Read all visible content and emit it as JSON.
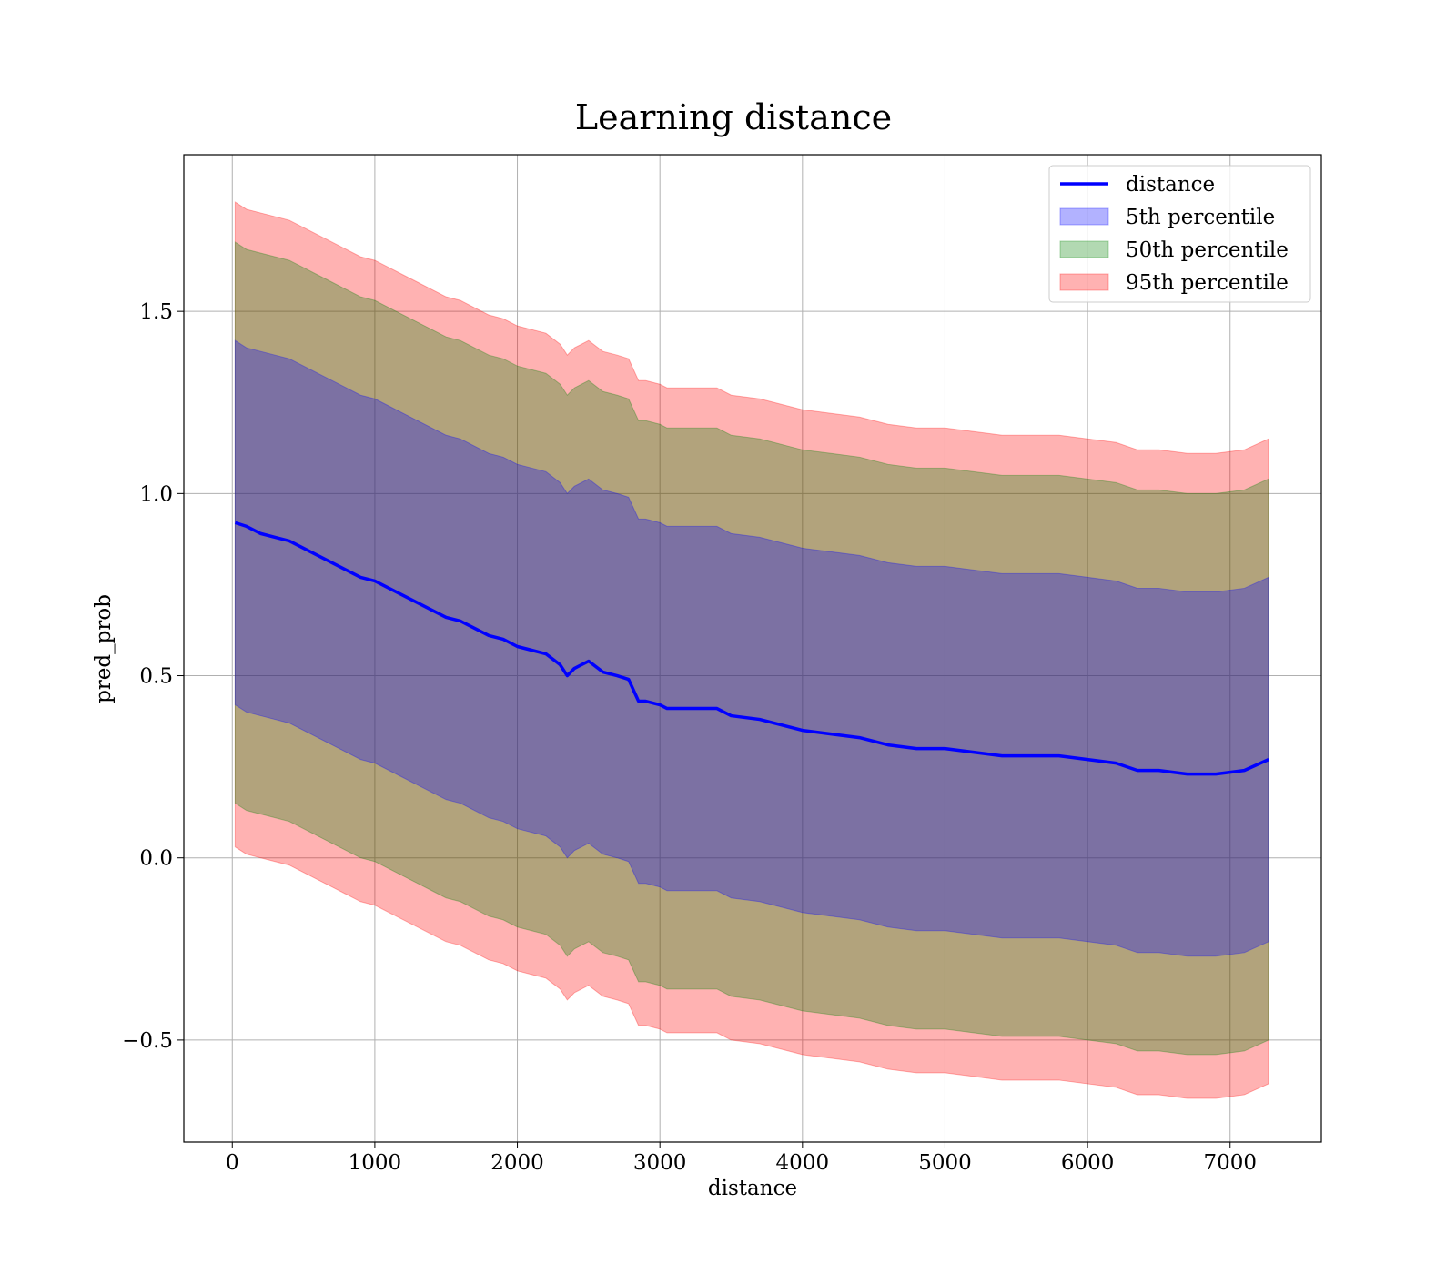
{
  "chart_data": {
    "type": "area",
    "title": "Learning distance",
    "xlabel": "distance",
    "ylabel": "pred_prob",
    "xlim": [
      -340,
      7640
    ],
    "ylim": [
      -0.78,
      1.93
    ],
    "grid": true,
    "legend_location": "top-right",
    "xticks": [
      0,
      1000,
      2000,
      3000,
      4000,
      5000,
      6000,
      7000
    ],
    "xtick_labels": [
      "0",
      "1000",
      "2000",
      "3000",
      "4000",
      "5000",
      "6000",
      "7000"
    ],
    "yticks": [
      -0.5,
      0.0,
      0.5,
      1.0,
      1.5
    ],
    "ytick_labels": [
      "−0.5",
      "0.0",
      "0.5",
      "1.0",
      "1.5"
    ],
    "x": [
      20,
      100,
      200,
      300,
      400,
      500,
      600,
      700,
      800,
      900,
      1000,
      1100,
      1200,
      1300,
      1400,
      1500,
      1600,
      1700,
      1800,
      1900,
      2000,
      2100,
      2200,
      2300,
      2350,
      2400,
      2500,
      2600,
      2700,
      2780,
      2850,
      2900,
      3000,
      3050,
      3200,
      3400,
      3500,
      3700,
      3800,
      3900,
      4000,
      4200,
      4400,
      4500,
      4600,
      4800,
      5000,
      5200,
      5400,
      5600,
      5800,
      6000,
      6200,
      6350,
      6500,
      6700,
      6900,
      7100,
      7270
    ],
    "series": [
      {
        "name": "distance",
        "kind": "line",
        "color": "#0000ff",
        "values": [
          0.92,
          0.91,
          0.89,
          0.88,
          0.87,
          0.85,
          0.83,
          0.81,
          0.79,
          0.77,
          0.76,
          0.74,
          0.72,
          0.7,
          0.68,
          0.66,
          0.65,
          0.63,
          0.61,
          0.6,
          0.58,
          0.57,
          0.56,
          0.53,
          0.5,
          0.52,
          0.54,
          0.51,
          0.5,
          0.49,
          0.43,
          0.43,
          0.42,
          0.41,
          0.41,
          0.41,
          0.39,
          0.38,
          0.37,
          0.36,
          0.35,
          0.34,
          0.33,
          0.32,
          0.31,
          0.3,
          0.3,
          0.29,
          0.28,
          0.28,
          0.28,
          0.27,
          0.26,
          0.24,
          0.24,
          0.23,
          0.23,
          0.24,
          0.27
        ]
      },
      {
        "name": "5th percentile",
        "kind": "band",
        "color": "#0000ff",
        "upper": [
          1.42,
          1.4,
          1.39,
          1.38,
          1.37,
          1.35,
          1.33,
          1.31,
          1.29,
          1.27,
          1.26,
          1.24,
          1.22,
          1.2,
          1.18,
          1.16,
          1.15,
          1.13,
          1.11,
          1.1,
          1.08,
          1.07,
          1.06,
          1.03,
          1.0,
          1.02,
          1.04,
          1.01,
          1.0,
          0.99,
          0.93,
          0.93,
          0.92,
          0.91,
          0.91,
          0.91,
          0.89,
          0.88,
          0.87,
          0.86,
          0.85,
          0.84,
          0.83,
          0.82,
          0.81,
          0.8,
          0.8,
          0.79,
          0.78,
          0.78,
          0.78,
          0.77,
          0.76,
          0.74,
          0.74,
          0.73,
          0.73,
          0.74,
          0.77
        ],
        "lower": [
          0.42,
          0.4,
          0.39,
          0.38,
          0.37,
          0.35,
          0.33,
          0.31,
          0.29,
          0.27,
          0.26,
          0.24,
          0.22,
          0.2,
          0.18,
          0.16,
          0.15,
          0.13,
          0.11,
          0.1,
          0.08,
          0.07,
          0.06,
          0.03,
          0.0,
          0.02,
          0.04,
          0.01,
          0.0,
          -0.01,
          -0.07,
          -0.07,
          -0.08,
          -0.09,
          -0.09,
          -0.09,
          -0.11,
          -0.12,
          -0.13,
          -0.14,
          -0.15,
          -0.16,
          -0.17,
          -0.18,
          -0.19,
          -0.2,
          -0.2,
          -0.21,
          -0.22,
          -0.22,
          -0.22,
          -0.23,
          -0.24,
          -0.26,
          -0.26,
          -0.27,
          -0.27,
          -0.26,
          -0.23
        ]
      },
      {
        "name": "50th percentile",
        "kind": "band",
        "color": "#008000",
        "upper": [
          1.69,
          1.67,
          1.66,
          1.65,
          1.64,
          1.62,
          1.6,
          1.58,
          1.56,
          1.54,
          1.53,
          1.51,
          1.49,
          1.47,
          1.45,
          1.43,
          1.42,
          1.4,
          1.38,
          1.37,
          1.35,
          1.34,
          1.33,
          1.3,
          1.27,
          1.29,
          1.31,
          1.28,
          1.27,
          1.26,
          1.2,
          1.2,
          1.19,
          1.18,
          1.18,
          1.18,
          1.16,
          1.15,
          1.14,
          1.13,
          1.12,
          1.11,
          1.1,
          1.09,
          1.08,
          1.07,
          1.07,
          1.06,
          1.05,
          1.05,
          1.05,
          1.04,
          1.03,
          1.01,
          1.01,
          1.0,
          1.0,
          1.01,
          1.04
        ],
        "lower": [
          0.15,
          0.13,
          0.12,
          0.11,
          0.1,
          0.08,
          0.06,
          0.04,
          0.02,
          0.0,
          -0.01,
          -0.03,
          -0.05,
          -0.07,
          -0.09,
          -0.11,
          -0.12,
          -0.14,
          -0.16,
          -0.17,
          -0.19,
          -0.2,
          -0.21,
          -0.24,
          -0.27,
          -0.25,
          -0.23,
          -0.26,
          -0.27,
          -0.28,
          -0.34,
          -0.34,
          -0.35,
          -0.36,
          -0.36,
          -0.36,
          -0.38,
          -0.39,
          -0.4,
          -0.41,
          -0.42,
          -0.43,
          -0.44,
          -0.45,
          -0.46,
          -0.47,
          -0.47,
          -0.48,
          -0.49,
          -0.49,
          -0.49,
          -0.5,
          -0.51,
          -0.53,
          -0.53,
          -0.54,
          -0.54,
          -0.53,
          -0.5
        ]
      },
      {
        "name": "95th percentile",
        "kind": "band",
        "color": "#ff0000",
        "upper": [
          1.8,
          1.78,
          1.77,
          1.76,
          1.75,
          1.73,
          1.71,
          1.69,
          1.67,
          1.65,
          1.64,
          1.62,
          1.6,
          1.58,
          1.56,
          1.54,
          1.53,
          1.51,
          1.49,
          1.48,
          1.46,
          1.45,
          1.44,
          1.41,
          1.38,
          1.4,
          1.42,
          1.39,
          1.38,
          1.37,
          1.31,
          1.31,
          1.3,
          1.29,
          1.29,
          1.29,
          1.27,
          1.26,
          1.25,
          1.24,
          1.23,
          1.22,
          1.21,
          1.2,
          1.19,
          1.18,
          1.18,
          1.17,
          1.16,
          1.16,
          1.16,
          1.15,
          1.14,
          1.12,
          1.12,
          1.11,
          1.11,
          1.12,
          1.15
        ],
        "lower": [
          0.03,
          0.01,
          0.0,
          -0.01,
          -0.02,
          -0.04,
          -0.06,
          -0.08,
          -0.1,
          -0.12,
          -0.13,
          -0.15,
          -0.17,
          -0.19,
          -0.21,
          -0.23,
          -0.24,
          -0.26,
          -0.28,
          -0.29,
          -0.31,
          -0.32,
          -0.33,
          -0.36,
          -0.39,
          -0.37,
          -0.35,
          -0.38,
          -0.39,
          -0.4,
          -0.46,
          -0.46,
          -0.47,
          -0.48,
          -0.48,
          -0.48,
          -0.5,
          -0.51,
          -0.52,
          -0.53,
          -0.54,
          -0.55,
          -0.56,
          -0.57,
          -0.58,
          -0.59,
          -0.59,
          -0.6,
          -0.61,
          -0.61,
          -0.61,
          -0.62,
          -0.63,
          -0.65,
          -0.65,
          -0.66,
          -0.66,
          -0.65,
          -0.62
        ]
      }
    ],
    "legend": [
      {
        "label": "distance",
        "kind": "line",
        "color": "#0000ff"
      },
      {
        "label": "5th percentile",
        "kind": "patch",
        "color": "#0000ff"
      },
      {
        "label": "50th percentile",
        "kind": "patch",
        "color": "#008000"
      },
      {
        "label": "95th percentile",
        "kind": "patch",
        "color": "#ff0000"
      }
    ]
  }
}
